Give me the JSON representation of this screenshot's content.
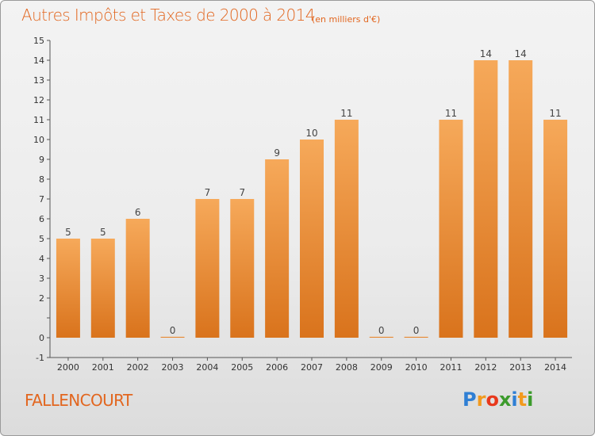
{
  "header": {
    "title": "Autres Impôts et Taxes de 2000 à 2014",
    "subtitle": "(en milliers d'€)"
  },
  "footer": {
    "commune": "FALLENCOURT",
    "logo": {
      "letters": [
        "P",
        "r",
        "o",
        "x",
        "i",
        "t",
        "i"
      ],
      "colors": [
        "#2f7fd4",
        "#f29a1e",
        "#e8381c",
        "#3c9b2c",
        "#2f7fd4",
        "#f29a1e",
        "#3c9b2c"
      ]
    }
  },
  "colors": {
    "bar_top": "#f6a95a",
    "bar_bottom": "#d9731c",
    "axis": "#555555",
    "label": "#444444"
  },
  "chart_data": {
    "type": "bar",
    "title": "Autres Impôts et Taxes de 2000 à 2014",
    "subtitle": "(en milliers d'€)",
    "categories": [
      "2000",
      "2001",
      "2002",
      "2003",
      "2004",
      "2005",
      "2006",
      "2007",
      "2008",
      "2009",
      "2010",
      "2011",
      "2012",
      "2013",
      "2014"
    ],
    "values": [
      5,
      5,
      6,
      0,
      7,
      7,
      9,
      10,
      11,
      0,
      0,
      11,
      14,
      14,
      11
    ],
    "value_labels": [
      "5",
      "5",
      "6",
      "0",
      "7",
      "7",
      "9",
      "10",
      "11",
      "0",
      "0",
      "11",
      "14",
      "14",
      "11"
    ],
    "ylim": [
      -1,
      15
    ],
    "yticks": [
      -1,
      0,
      1,
      2,
      3,
      4,
      5,
      6,
      7,
      8,
      9,
      10,
      11,
      12,
      13,
      14,
      15
    ],
    "ytick_labels": [
      "-1",
      "0",
      "",
      "2",
      "3",
      "4",
      "5",
      "6",
      "7",
      "8",
      "9",
      "10",
      "11",
      "12",
      "13",
      "14",
      "15"
    ],
    "xlabel": "",
    "ylabel": "",
    "grid": false,
    "legend": "none"
  }
}
